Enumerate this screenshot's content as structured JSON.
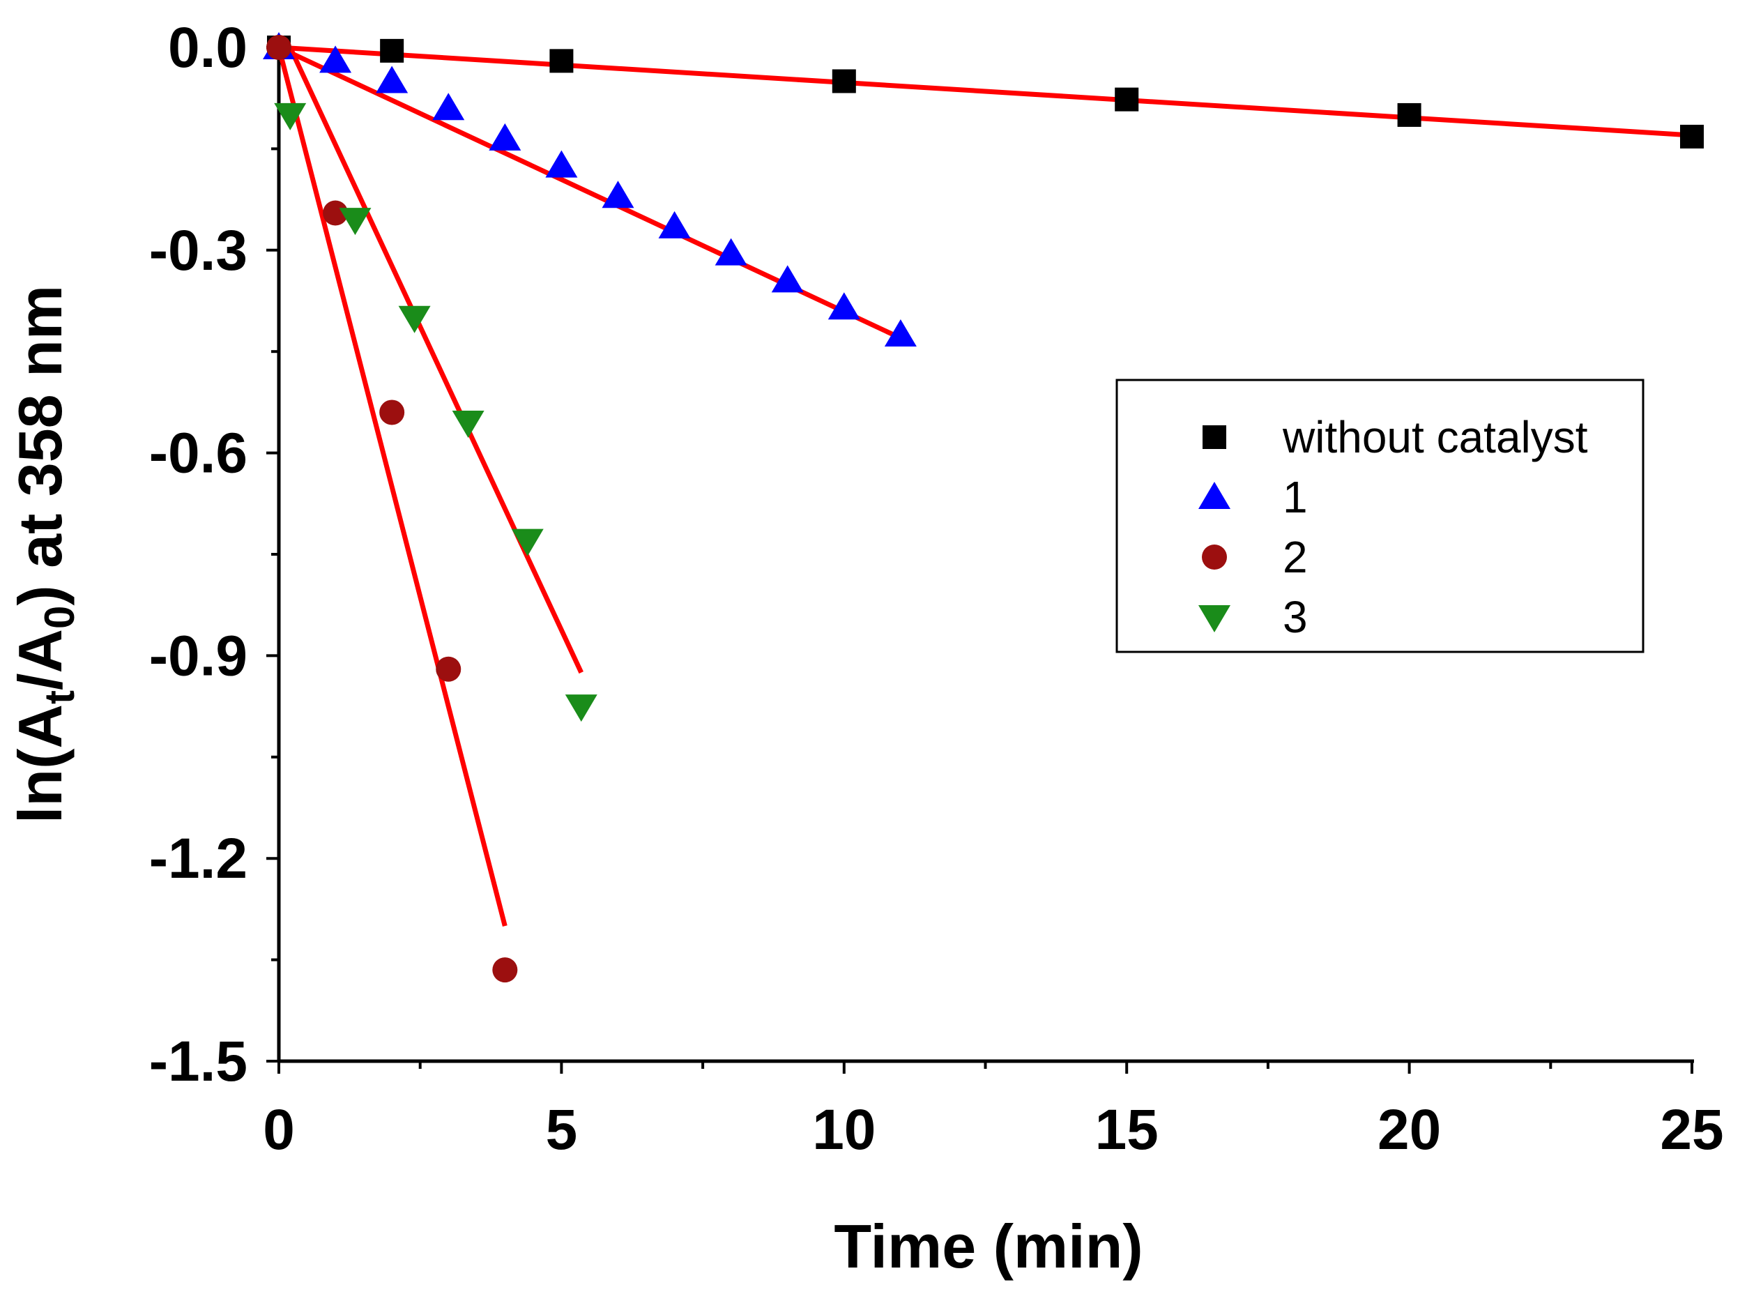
{
  "chart_data": {
    "type": "scatter",
    "title": "",
    "xlabel": "Time (min)",
    "ylabel": {
      "prefix": "ln(A",
      "sub1": "t",
      "mid": "/A",
      "sub2": "0",
      "suffix": ") at 358 nm"
    },
    "xlim": [
      0,
      25
    ],
    "ylim": [
      -1.5,
      0.0
    ],
    "x_ticks": [
      0,
      5,
      10,
      15,
      20,
      25
    ],
    "x_tick_labels": [
      "0",
      "5",
      "10",
      "15",
      "20",
      "25"
    ],
    "y_ticks": [
      0.0,
      -0.3,
      -0.6,
      -0.9,
      -1.2,
      -1.5
    ],
    "y_tick_labels": [
      "0.0",
      "-0.3",
      "-0.6",
      "-0.9",
      "-1.2",
      "-1.5"
    ],
    "grid": false,
    "legend_position": "middle-right",
    "fit_line_color": "#ff0000",
    "series": [
      {
        "name": "without catalyst",
        "marker": "square",
        "color": "#000000",
        "x": [
          0,
          2,
          5,
          10,
          15,
          20,
          25
        ],
        "y": [
          0.0,
          -0.005,
          -0.02,
          -0.05,
          -0.077,
          -0.1,
          -0.132
        ],
        "fit": {
          "x": [
            0,
            25
          ],
          "y": [
            0.0,
            -0.13
          ]
        }
      },
      {
        "name": "1",
        "marker": "triangle-up",
        "color": "#0000ff",
        "x": [
          0,
          1,
          2,
          3,
          4,
          5,
          6,
          7,
          8,
          9,
          10,
          11
        ],
        "y": [
          0.0,
          -0.02,
          -0.05,
          -0.09,
          -0.135,
          -0.175,
          -0.22,
          -0.265,
          -0.305,
          -0.345,
          -0.385,
          -0.425
        ],
        "fit": {
          "x": [
            0,
            11
          ],
          "y": [
            0.0,
            -0.43
          ]
        }
      },
      {
        "name": "2",
        "marker": "circle",
        "color": "#9c0f0f",
        "x": [
          0,
          1,
          2,
          3,
          4
        ],
        "y": [
          0.0,
          -0.245,
          -0.54,
          -0.92,
          -1.365
        ],
        "fit": {
          "x": [
            0,
            4
          ],
          "y": [
            0.0,
            -1.3
          ]
        }
      },
      {
        "name": "3",
        "marker": "triangle-down",
        "color": "#1a8c1a",
        "x": [
          0.2,
          1.35,
          2.4,
          3.35,
          4.4,
          5.35
        ],
        "y": [
          -0.1,
          -0.255,
          -0.4,
          -0.555,
          -0.73,
          -0.975
        ],
        "fit": {
          "x": [
            0.2,
            5.35
          ],
          "y": [
            0.0,
            -0.925
          ]
        }
      }
    ]
  }
}
